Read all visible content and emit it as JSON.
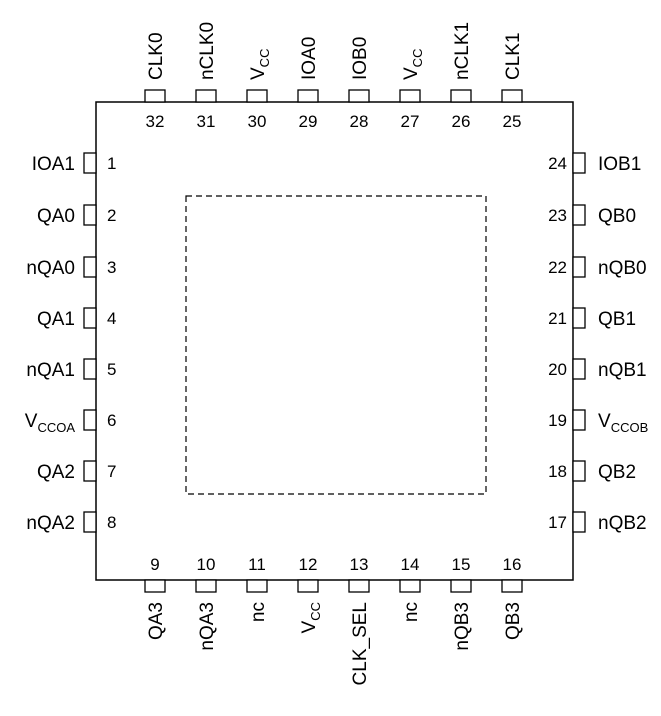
{
  "package": {
    "left_pins": [
      {
        "num": "1",
        "name": "IOA1"
      },
      {
        "num": "2",
        "name": "QA0"
      },
      {
        "num": "3",
        "name": "nQA0"
      },
      {
        "num": "4",
        "name": "QA1"
      },
      {
        "num": "5",
        "name": "nQA1"
      },
      {
        "num": "6",
        "name": "V",
        "sub": "CCOA"
      },
      {
        "num": "7",
        "name": "QA2"
      },
      {
        "num": "8",
        "name": "nQA2"
      }
    ],
    "bottom_pins": [
      {
        "num": "9",
        "name": "QA3"
      },
      {
        "num": "10",
        "name": "nQA3"
      },
      {
        "num": "11",
        "name": "nc"
      },
      {
        "num": "12",
        "name": "V",
        "sub": "CC"
      },
      {
        "num": "13",
        "name": "CLK_SEL"
      },
      {
        "num": "14",
        "name": "nc"
      },
      {
        "num": "15",
        "name": "nQB3"
      },
      {
        "num": "16",
        "name": "QB3"
      }
    ],
    "right_pins": [
      {
        "num": "24",
        "name": "IOB1"
      },
      {
        "num": "23",
        "name": "QB0"
      },
      {
        "num": "22",
        "name": "nQB0"
      },
      {
        "num": "21",
        "name": "QB1"
      },
      {
        "num": "20",
        "name": "nQB1"
      },
      {
        "num": "19",
        "name": "V",
        "sub": "CCOB"
      },
      {
        "num": "18",
        "name": "QB2"
      },
      {
        "num": "17",
        "name": "nQB2"
      }
    ],
    "top_pins": [
      {
        "num": "32",
        "name": "CLK0"
      },
      {
        "num": "31",
        "name": "nCLK0"
      },
      {
        "num": "30",
        "name": "V",
        "sub": "CC"
      },
      {
        "num": "29",
        "name": "IOA0"
      },
      {
        "num": "28",
        "name": "IOB0"
      },
      {
        "num": "27",
        "name": "V",
        "sub": "CC"
      },
      {
        "num": "26",
        "name": "nCLK1"
      },
      {
        "num": "25",
        "name": "CLK1"
      }
    ]
  }
}
